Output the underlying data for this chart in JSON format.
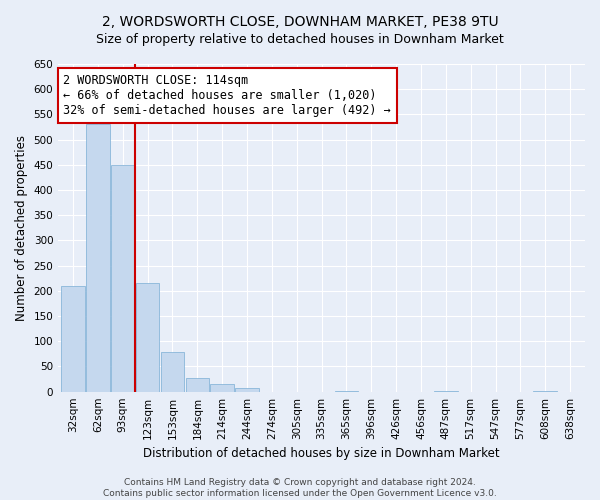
{
  "title": "2, WORDSWORTH CLOSE, DOWNHAM MARKET, PE38 9TU",
  "subtitle": "Size of property relative to detached houses in Downham Market",
  "xlabel": "Distribution of detached houses by size in Downham Market",
  "ylabel": "Number of detached properties",
  "categories": [
    "32sqm",
    "62sqm",
    "93sqm",
    "123sqm",
    "153sqm",
    "184sqm",
    "214sqm",
    "244sqm",
    "274sqm",
    "305sqm",
    "335sqm",
    "365sqm",
    "396sqm",
    "426sqm",
    "456sqm",
    "487sqm",
    "517sqm",
    "547sqm",
    "577sqm",
    "608sqm",
    "638sqm"
  ],
  "values": [
    210,
    530,
    450,
    215,
    78,
    28,
    15,
    8,
    0,
    0,
    0,
    2,
    0,
    0,
    0,
    1,
    0,
    0,
    0,
    1,
    0
  ],
  "bar_color": "#c5d8ee",
  "bar_edgecolor": "#7aadd4",
  "vline_color": "#cc0000",
  "annotation_text": "2 WORDSWORTH CLOSE: 114sqm\n← 66% of detached houses are smaller (1,020)\n32% of semi-detached houses are larger (492) →",
  "annotation_box_facecolor": "#ffffff",
  "annotation_box_edgecolor": "#cc0000",
  "ylim": [
    0,
    650
  ],
  "yticks": [
    0,
    50,
    100,
    150,
    200,
    250,
    300,
    350,
    400,
    450,
    500,
    550,
    600,
    650
  ],
  "bg_color": "#e8eef8",
  "grid_color": "#ffffff",
  "footer_text": "Contains HM Land Registry data © Crown copyright and database right 2024.\nContains public sector information licensed under the Open Government Licence v3.0.",
  "title_fontsize": 10,
  "subtitle_fontsize": 9,
  "xlabel_fontsize": 8.5,
  "ylabel_fontsize": 8.5,
  "tick_fontsize": 7.5,
  "annotation_fontsize": 8.5,
  "footer_fontsize": 6.5
}
